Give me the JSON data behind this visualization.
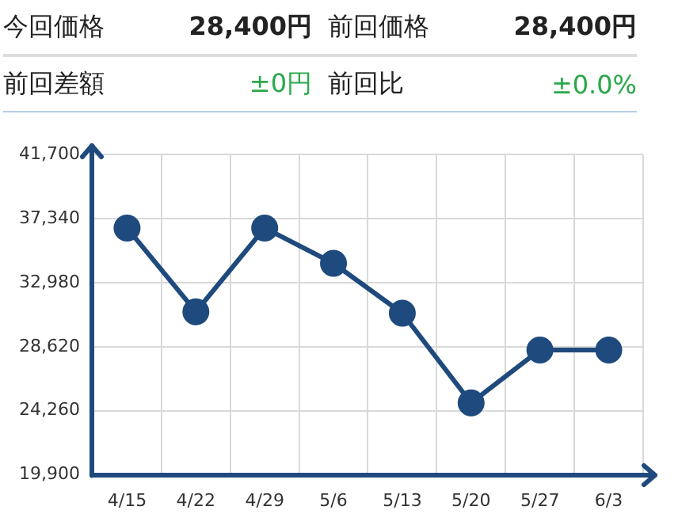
{
  "chart_data": {
    "type": "line",
    "annotations": [
      "今回価格",
      "28,400円",
      "前回価格",
      "28,400円",
      "前回差額",
      "±0円",
      "前回比",
      "±0.0%"
    ],
    "categories": [
      "4/15",
      "4/22",
      "4/29",
      "5/6",
      "5/13",
      "5/20",
      "5/27",
      "6/3"
    ],
    "series": [
      {
        "color": "#1f4a7d",
        "values": [
          36700,
          31000,
          36700,
          34300,
          30900,
          24800,
          28400,
          28400
        ]
      }
    ],
    "ylim": [
      19900,
      41700
    ],
    "yticks": [
      {
        "value": 19900,
        "label": "19,900"
      },
      {
        "value": 24260,
        "label": "24,260"
      },
      {
        "value": 28620,
        "label": "28,620"
      },
      {
        "value": 32980,
        "label": "32,980"
      },
      {
        "value": 37340,
        "label": "37,340"
      },
      {
        "value": 41700,
        "label": "41,700"
      }
    ],
    "grid": true,
    "marker": "circle",
    "line_style": "solid",
    "legend": false
  }
}
